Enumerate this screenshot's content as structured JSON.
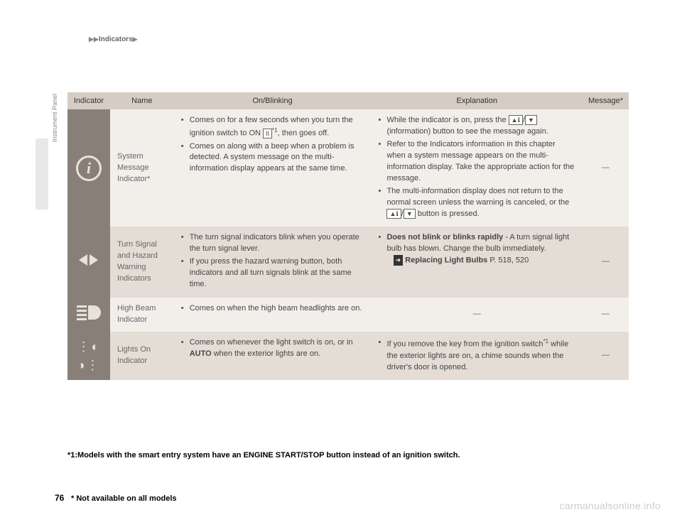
{
  "header": {
    "section": "Indicators"
  },
  "sidebar": {
    "label": "Instrument Panel"
  },
  "columns": {
    "indicator": "Indicator",
    "name": "Name",
    "onblink": "On/Blinking",
    "explanation": "Explanation",
    "message": "Message*"
  },
  "rows": [
    {
      "name": "System Message Indicator*",
      "on_items": [
        "Comes on for a few seconds when you turn the ignition switch to ON (II)*1, then goes off.",
        "Comes on along with a beep when a problem is detected. A system message on the multi-information display appears at the same time."
      ],
      "exp_items": [
        "While the indicator is on, press the ▲ℹ/▼ (information) button to see the message again.",
        "Refer to the Indicators information in this chapter when a system message appears on the multi-information display. Take the appropriate action for the message.",
        "The multi-information display does not return to the normal screen unless the warning is canceled, or the ▲ℹ/▼ button is pressed."
      ],
      "msg": "—"
    },
    {
      "name": "Turn Signal and Hazard Warning Indicators",
      "on_items": [
        "The turn signal indicators blink when you operate the turn signal lever.",
        "If you press the hazard warning button, both indicators and all turn signals blink at the same time."
      ],
      "exp_items": [
        "Does not blink or blinks rapidly - A turn signal light bulb has blown. Change the bulb immediately."
      ],
      "exp_xref": "Replacing Light Bulbs",
      "exp_xref_page": "P. 518, 520",
      "msg": "—"
    },
    {
      "name": "High Beam Indicator",
      "on_items": [
        "Comes on when the high beam headlights are on."
      ],
      "exp_items": [],
      "exp_dash": "—",
      "msg": "—"
    },
    {
      "name": "Lights On Indicator",
      "on_items": [
        "Comes on whenever the light switch is on, or in AUTO when the exterior lights are on."
      ],
      "exp_items": [
        "If you remove the key from the ignition switch*1 while the exterior lights are on, a chime sounds when the driver's door is opened."
      ],
      "msg": "—"
    }
  ],
  "footnote": "*1:Models with the smart entry system have an ENGINE START/STOP button instead of an ignition switch.",
  "page_number": "76",
  "bottom_note": "* Not available on all models",
  "watermark": "carmanualsonline.info"
}
